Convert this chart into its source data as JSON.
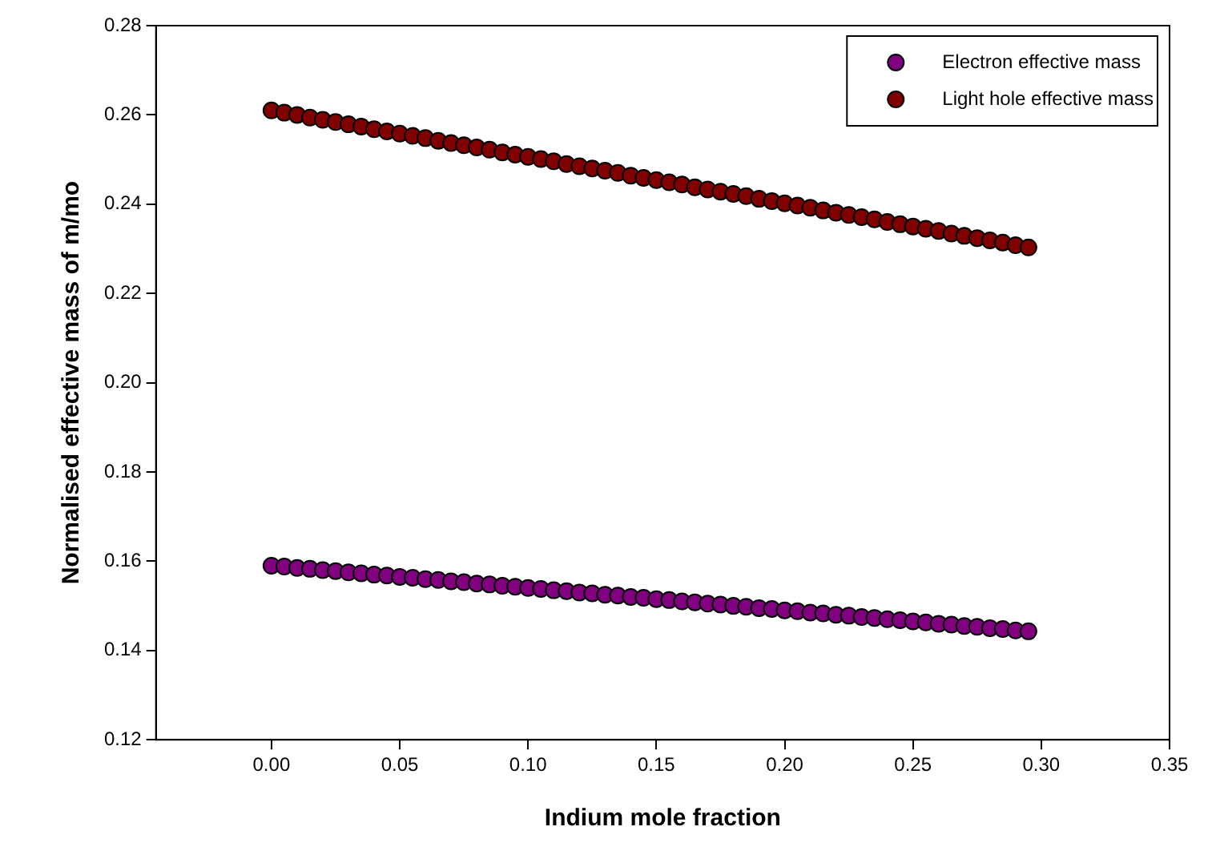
{
  "chart_data": {
    "type": "scatter",
    "xlabel": "Indium mole fraction",
    "ylabel": "Normalised effective mass of m/mo",
    "x": [
      0,
      0.005,
      0.01,
      0.015,
      0.02,
      0.025,
      0.03,
      0.035,
      0.04,
      0.045,
      0.05,
      0.055,
      0.06,
      0.065,
      0.07,
      0.075,
      0.08,
      0.085,
      0.09,
      0.095,
      0.1,
      0.105,
      0.11,
      0.115,
      0.12,
      0.125,
      0.13,
      0.135,
      0.14,
      0.145,
      0.15,
      0.155,
      0.16,
      0.165,
      0.17,
      0.175,
      0.18,
      0.185,
      0.19,
      0.195,
      0.2,
      0.205,
      0.21,
      0.215,
      0.22,
      0.225,
      0.23,
      0.235,
      0.24,
      0.245,
      0.25,
      0.255,
      0.26,
      0.265,
      0.27,
      0.275,
      0.28,
      0.285,
      0.29,
      0.295
    ],
    "series": [
      {
        "name": "Electron effective mass",
        "color": "#800080",
        "values": [
          0.159,
          0.1588,
          0.1585,
          0.1583,
          0.158,
          0.1578,
          0.1575,
          0.1573,
          0.157,
          0.1568,
          0.1565,
          0.1563,
          0.156,
          0.1558,
          0.1555,
          0.1553,
          0.155,
          0.1548,
          0.1545,
          0.1543,
          0.154,
          0.1538,
          0.1535,
          0.1533,
          0.153,
          0.1528,
          0.1525,
          0.1523,
          0.152,
          0.1518,
          0.1515,
          0.1513,
          0.151,
          0.1508,
          0.1505,
          0.1503,
          0.15,
          0.1498,
          0.1495,
          0.1493,
          0.149,
          0.1488,
          0.1485,
          0.1483,
          0.148,
          0.1478,
          0.1475,
          0.1473,
          0.147,
          0.1468,
          0.1465,
          0.1463,
          0.146,
          0.1458,
          0.1455,
          0.1453,
          0.145,
          0.1448,
          0.1445,
          0.1443
        ]
      },
      {
        "name": "Light hole effective mass",
        "color": "#800000",
        "values": [
          0.261,
          0.2605,
          0.26,
          0.2594,
          0.2589,
          0.2584,
          0.2579,
          0.2574,
          0.2568,
          0.2563,
          0.2558,
          0.2553,
          0.2548,
          0.2542,
          0.2537,
          0.2532,
          0.2527,
          0.2522,
          0.2516,
          0.2511,
          0.2506,
          0.2501,
          0.2496,
          0.249,
          0.2485,
          0.248,
          0.2475,
          0.247,
          0.2464,
          0.2459,
          0.2454,
          0.2449,
          0.2444,
          0.2438,
          0.2433,
          0.2428,
          0.2423,
          0.2418,
          0.2412,
          0.2407,
          0.2402,
          0.2397,
          0.2392,
          0.2386,
          0.2381,
          0.2376,
          0.2371,
          0.2366,
          0.236,
          0.2355,
          0.235,
          0.2345,
          0.234,
          0.2334,
          0.2329,
          0.2324,
          0.2319,
          0.2314,
          0.2308,
          0.2303
        ]
      }
    ],
    "xlim": [
      -0.045,
      0.35
    ],
    "xticks": [
      {
        "value": 0,
        "label": "0.00"
      },
      {
        "value": 0.05,
        "label": "0.05"
      },
      {
        "value": 0.1,
        "label": "0.10"
      },
      {
        "value": 0.15,
        "label": "0.15"
      },
      {
        "value": 0.2,
        "label": "0.20"
      },
      {
        "value": 0.25,
        "label": "0.25"
      },
      {
        "value": 0.3,
        "label": "0.30"
      },
      {
        "value": 0.35,
        "label": "0.35"
      }
    ],
    "ylim": [
      0.12,
      0.28
    ],
    "yticks": [
      {
        "value": 0.12,
        "label": "0.12"
      },
      {
        "value": 0.14,
        "label": "0.14"
      },
      {
        "value": 0.16,
        "label": "0.16"
      },
      {
        "value": 0.18,
        "label": "0.18"
      },
      {
        "value": 0.2,
        "label": "0.20"
      },
      {
        "value": 0.22,
        "label": "0.22"
      },
      {
        "value": 0.24,
        "label": "0.24"
      },
      {
        "value": 0.26,
        "label": "0.26"
      },
      {
        "value": 0.28,
        "label": "0.28"
      }
    ],
    "grid": false,
    "legend": "top right",
    "marker": "circle"
  }
}
